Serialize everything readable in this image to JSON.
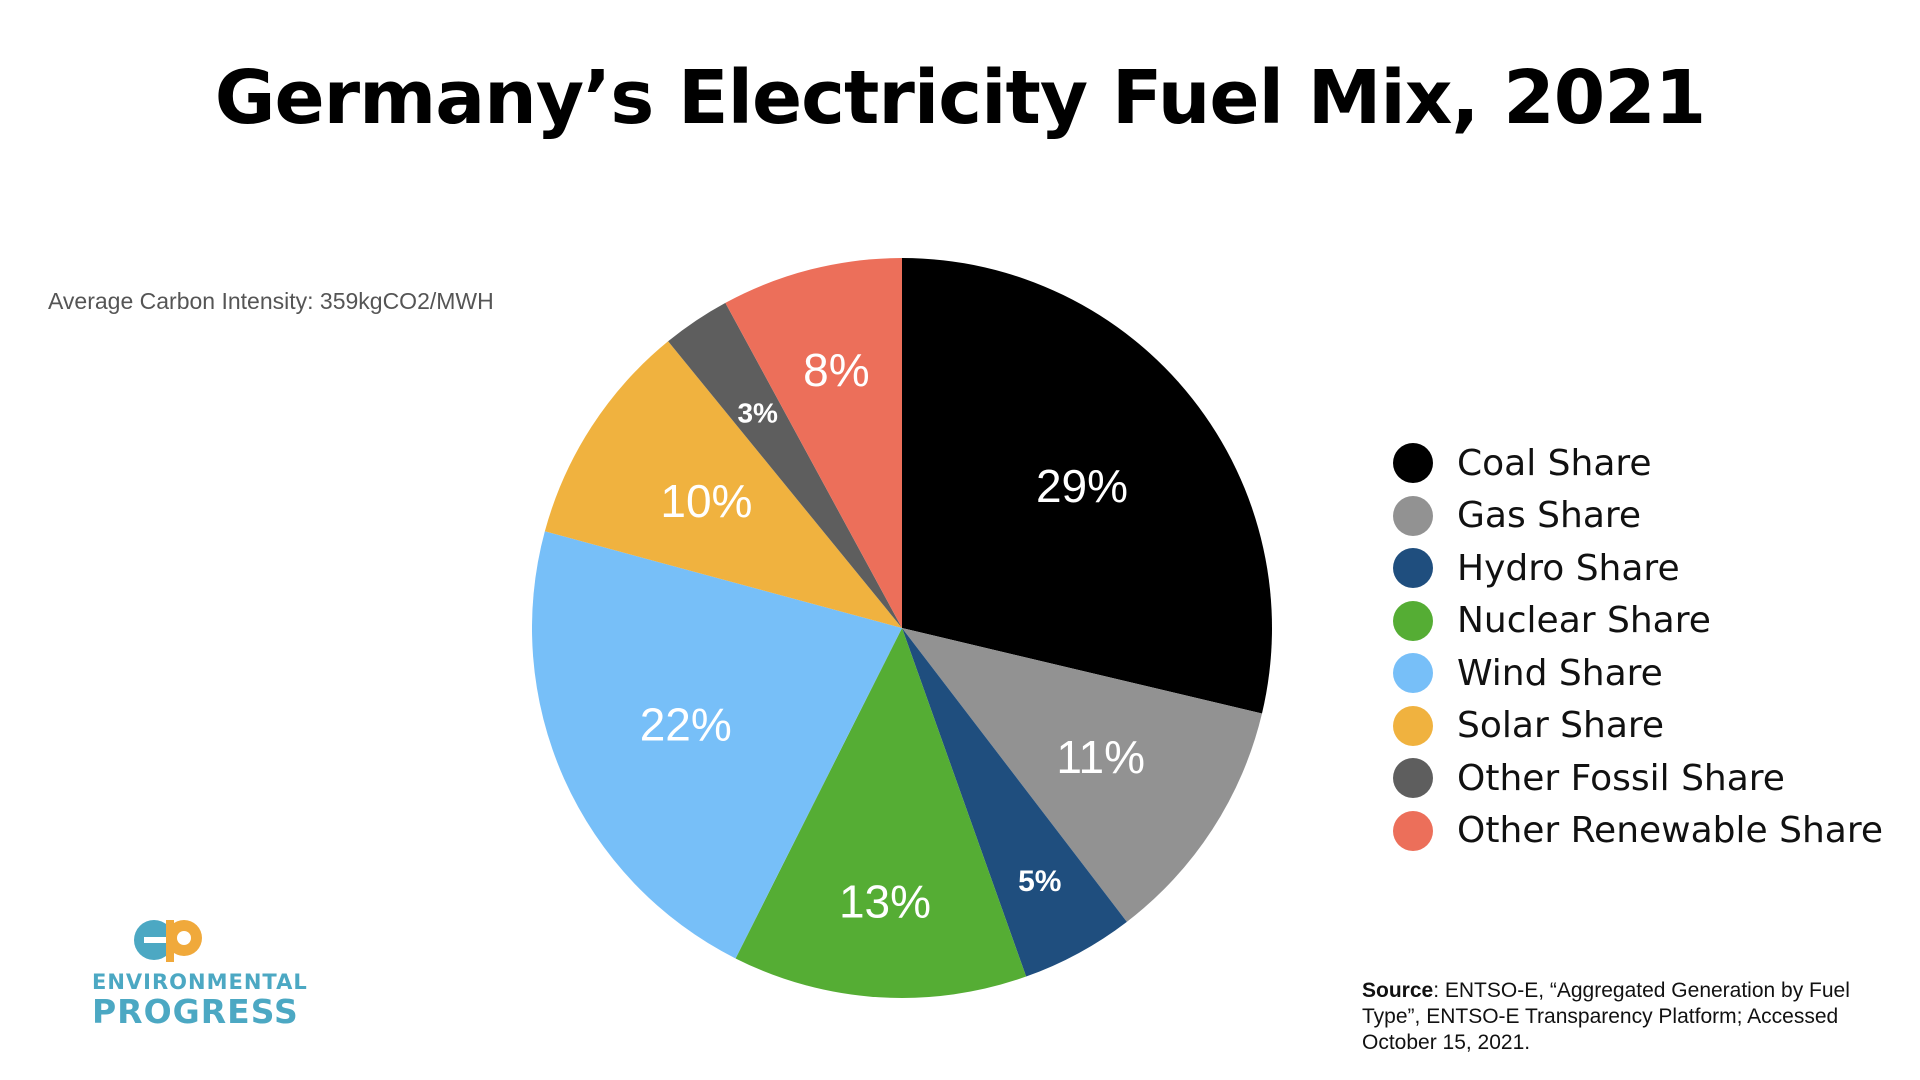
{
  "title": "Germany’s Electricity Fuel Mix, 2021",
  "subtitle": "Average Carbon Intensity: 359kgCO2/MWH",
  "chart_data": {
    "type": "pie",
    "title": "Germany’s Electricity Fuel Mix, 2021",
    "legend_position": "right",
    "start": "12 o'clock, clockwise",
    "slices": [
      {
        "name": "Coal Share",
        "value": 29,
        "label": "29%",
        "color": "#000000"
      },
      {
        "name": "Gas Share",
        "value": 11,
        "label": "11%",
        "color": "#929292"
      },
      {
        "name": "Hydro Share",
        "value": 5,
        "label": "5%",
        "color": "#1f4e7e"
      },
      {
        "name": "Nuclear Share",
        "value": 13,
        "label": "13%",
        "color": "#55ad34"
      },
      {
        "name": "Wind Share",
        "value": 22,
        "label": "22%",
        "color": "#77bff8"
      },
      {
        "name": "Solar Share",
        "value": 10,
        "label": "10%",
        "color": "#f0b23f"
      },
      {
        "name": "Other Fossil Share",
        "value": 3,
        "label": "3%",
        "color": "#5e5e5e"
      },
      {
        "name": "Other Renewable Share",
        "value": 8,
        "label": "8%",
        "color": "#ec6f5a"
      }
    ]
  },
  "logo": {
    "line1": "ENVIRONMENTAL",
    "line2": "PROGRESS",
    "colors": {
      "teal": "#4ca8c3",
      "orange": "#f0a93b"
    }
  },
  "source": {
    "label": "Source",
    "text": ": ENTSO-E, “Aggregated Generation by Fuel Type”, ENTSO-E Transparency Platform; Accessed October 15, 2021."
  }
}
